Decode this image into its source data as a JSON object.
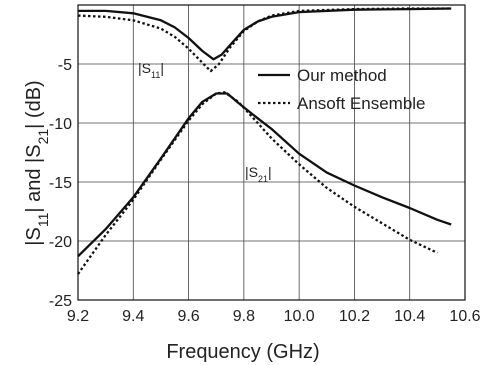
{
  "chart_data": {
    "type": "line",
    "xlabel": "Frequency (GHz)",
    "ylabel_parts": {
      "p1": "|S",
      "s1": "11",
      "p2": "| and |S",
      "s2": "21",
      "p3": "| (dB)"
    },
    "xlim": [
      9.2,
      10.6
    ],
    "ylim": [
      -25,
      0
    ],
    "xticks": [
      "9.2",
      "9.4",
      "9.6",
      "9.8",
      "10.0",
      "10.2",
      "10.4",
      "10.6"
    ],
    "yticks": [
      "-5",
      "-10",
      "-15",
      "-20",
      "-25"
    ],
    "grid": true,
    "legend_position": "upper-right",
    "series": [
      {
        "name": "Our method",
        "style": "solid",
        "group": "S11",
        "x": [
          9.2,
          9.3,
          9.4,
          9.5,
          9.55,
          9.6,
          9.65,
          9.69,
          9.72,
          9.75,
          9.8,
          9.85,
          9.9,
          10.0,
          10.2,
          10.4,
          10.55
        ],
        "y": [
          -0.5,
          -0.5,
          -0.7,
          -1.3,
          -1.9,
          -2.8,
          -3.9,
          -4.6,
          -4.2,
          -3.4,
          -2.1,
          -1.4,
          -1.0,
          -0.6,
          -0.4,
          -0.35,
          -0.3
        ]
      },
      {
        "name": "Ansoft Ensemble",
        "style": "dotted",
        "group": "S11",
        "x": [
          9.2,
          9.3,
          9.4,
          9.5,
          9.55,
          9.6,
          9.65,
          9.68,
          9.71,
          9.75,
          9.8,
          9.85,
          9.9,
          10.0,
          10.2,
          10.4,
          10.55
        ],
        "y": [
          -0.9,
          -1.0,
          -1.3,
          -2.0,
          -2.7,
          -3.7,
          -4.9,
          -5.6,
          -5.0,
          -3.6,
          -2.2,
          -1.4,
          -0.9,
          -0.5,
          -0.35,
          -0.3,
          -0.3
        ]
      },
      {
        "name": "Our method",
        "style": "solid",
        "group": "S21",
        "x": [
          9.2,
          9.3,
          9.4,
          9.5,
          9.6,
          9.65,
          9.7,
          9.74,
          9.78,
          9.85,
          9.9,
          10.0,
          10.1,
          10.2,
          10.3,
          10.4,
          10.5,
          10.55
        ],
        "y": [
          -21.3,
          -19.0,
          -16.3,
          -13.0,
          -9.6,
          -8.2,
          -7.5,
          -7.5,
          -8.3,
          -9.6,
          -10.5,
          -12.6,
          -14.2,
          -15.3,
          -16.3,
          -17.2,
          -18.2,
          -18.6
        ]
      },
      {
        "name": "Ansoft Ensemble",
        "style": "dotted",
        "group": "S21",
        "x": [
          9.2,
          9.3,
          9.4,
          9.5,
          9.6,
          9.65,
          9.7,
          9.73,
          9.78,
          9.85,
          9.9,
          10.0,
          10.1,
          10.2,
          10.3,
          10.4,
          10.5
        ],
        "y": [
          -22.8,
          -19.5,
          -16.5,
          -13.1,
          -9.8,
          -8.4,
          -7.5,
          -7.4,
          -8.2,
          -10.0,
          -11.3,
          -13.5,
          -15.5,
          -17.1,
          -18.5,
          -19.9,
          -21.0
        ]
      }
    ],
    "legend": [
      {
        "label": "Our method",
        "style": "solid"
      },
      {
        "label": "Ansoft Ensemble",
        "style": "dotted"
      }
    ],
    "annotations": {
      "s11": {
        "pre": "|S",
        "sub": "11",
        "post": "|"
      },
      "s21": {
        "pre": "|S",
        "sub": "21",
        "post": "|"
      }
    }
  }
}
